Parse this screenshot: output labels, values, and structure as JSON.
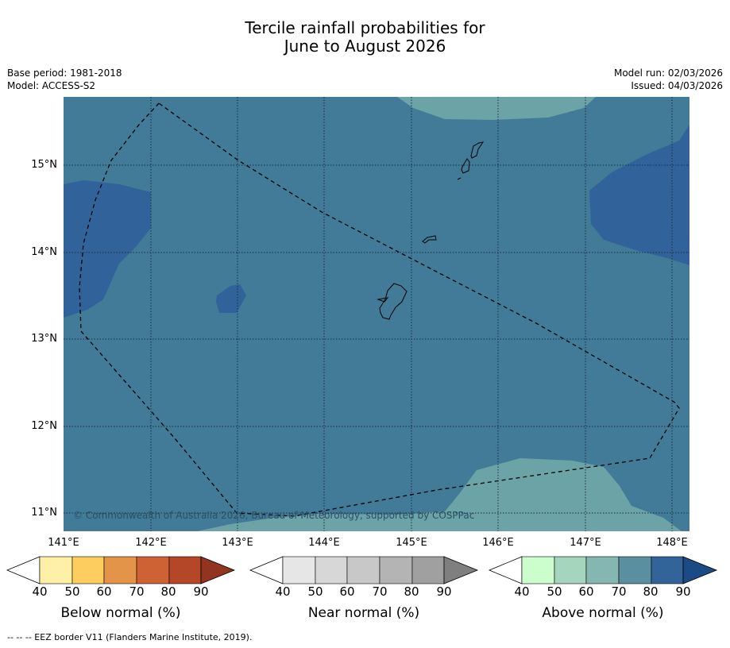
{
  "title": {
    "line1": "Tercile rainfall probabilities for",
    "line2": "June to August 2026"
  },
  "meta": {
    "base_period": "Base period: 1981-2018",
    "model": "Model: ACCESS-S2",
    "model_run": "Model run: 02/03/2026",
    "issued": "Issued: 04/03/2026"
  },
  "map": {
    "lat_labels": [
      "15°N",
      "14°N",
      "13°N",
      "12°N",
      "11°N"
    ],
    "lon_labels": [
      "141°E",
      "142°E",
      "143°E",
      "144°E",
      "145°E",
      "146°E",
      "147°E",
      "148°E"
    ],
    "copyright": "© Commonwealth of Australia 2026, Bureau of Meteorology, supported by COSPPac",
    "colors": {
      "background": "#417b98",
      "above_80": "#31639a",
      "above_70": "#6ca3a6"
    }
  },
  "colorbars": {
    "below": {
      "title": "Below normal (%)",
      "ticks": [
        "40",
        "50",
        "60",
        "70",
        "80",
        "90"
      ],
      "colors": [
        "#fef0a6",
        "#fdcd60",
        "#e39448",
        "#cf6235",
        "#b34727",
        "#913520"
      ]
    },
    "near": {
      "title": "Near normal (%)",
      "ticks": [
        "40",
        "50",
        "60",
        "70",
        "80",
        "90"
      ],
      "colors": [
        "#e6e6e6",
        "#d7d7d7",
        "#c8c8c8",
        "#b4b4b4",
        "#a0a0a0",
        "#7f7f7f"
      ]
    },
    "above": {
      "title": "Above normal (%)",
      "ticks": [
        "40",
        "50",
        "60",
        "70",
        "80",
        "90"
      ],
      "colors": [
        "#ccfdcc",
        "#a6d5be",
        "#84b7b1",
        "#5a8fa0",
        "#336499",
        "#1b4b84"
      ]
    }
  },
  "footer": "--  --  -- EEZ border V11 (Flanders Marine Institute, 2019)."
}
